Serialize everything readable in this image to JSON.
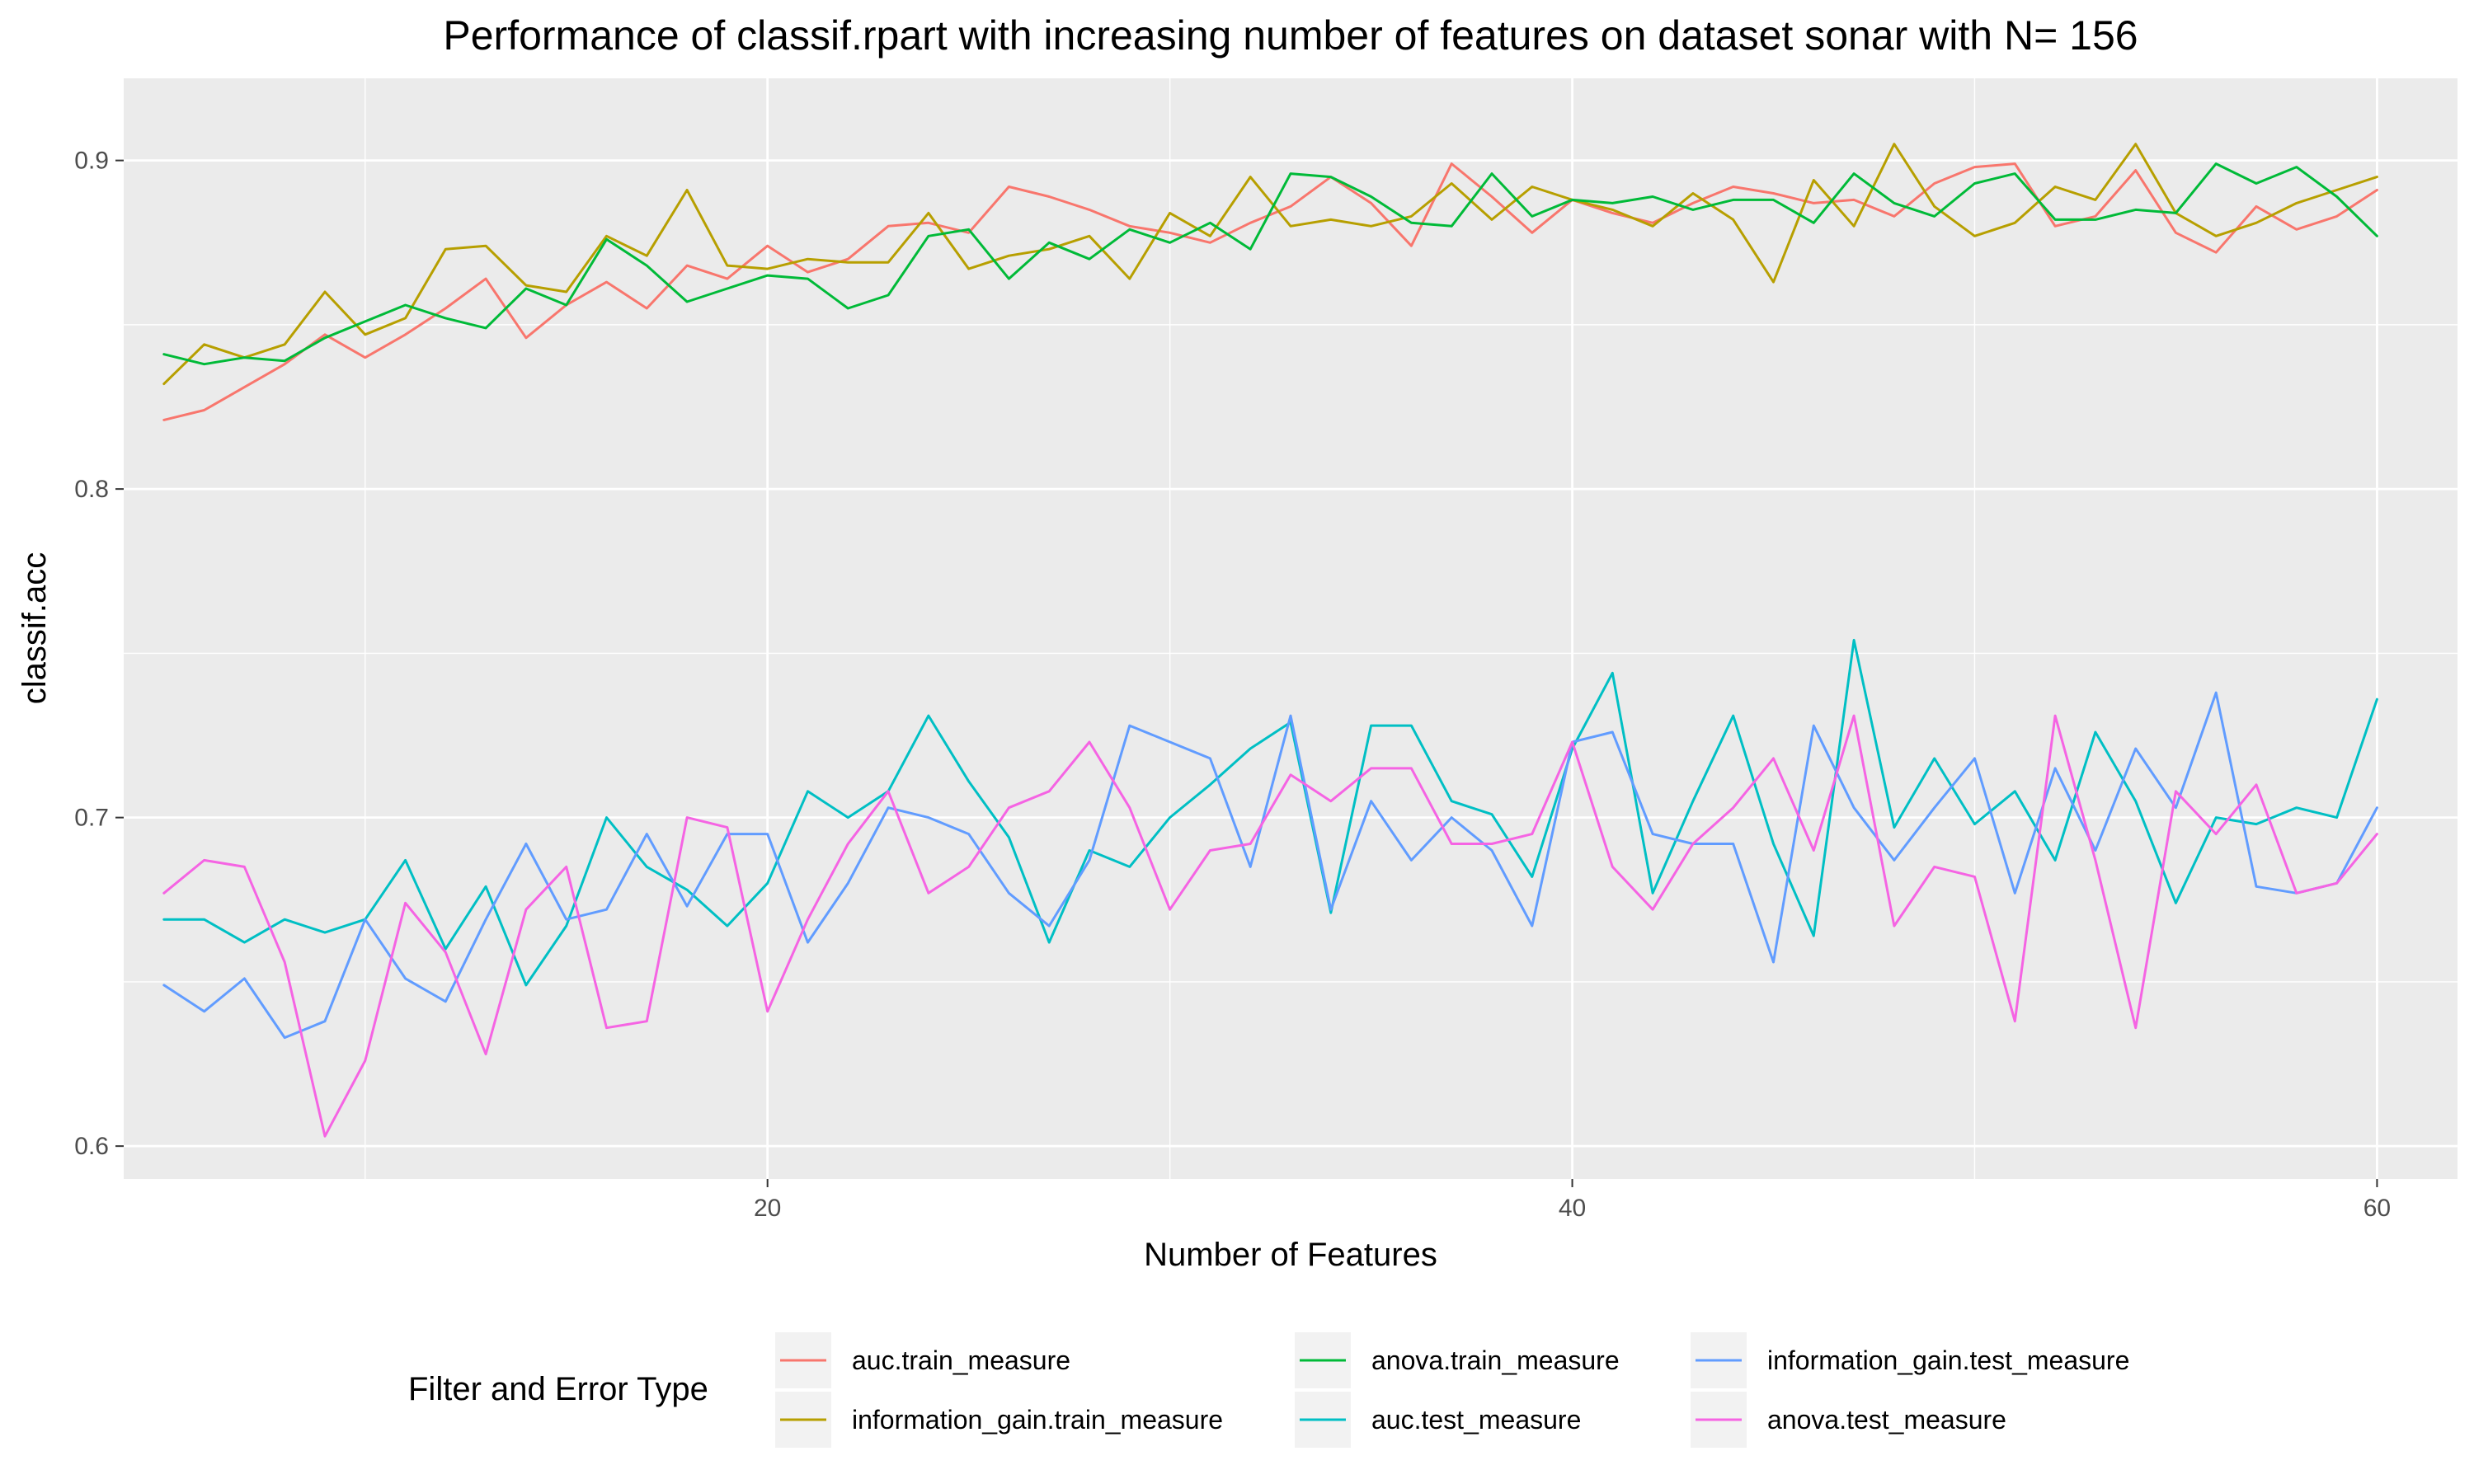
{
  "chart_data": {
    "type": "line",
    "title": "Performance of classif.rpart with increasing number of features on dataset sonar with N= 156",
    "xlabel": "Number of Features",
    "ylabel": "classif.acc",
    "xlim": [
      4,
      62
    ],
    "ylim": [
      0.59,
      0.925
    ],
    "x_ticks": [
      20,
      40,
      60
    ],
    "y_ticks": [
      0.6,
      0.7,
      0.8,
      0.9
    ],
    "x_tick_labels": [
      "20",
      "40",
      "60"
    ],
    "y_tick_labels": [
      "0.6",
      "0.7",
      "0.8",
      "0.9"
    ],
    "grid": true,
    "legend_title": "Filter and Error Type",
    "legend_position": "bottom",
    "x": [
      5,
      6,
      7,
      8,
      9,
      10,
      11,
      12,
      13,
      14,
      15,
      16,
      17,
      18,
      19,
      20,
      21,
      22,
      23,
      24,
      25,
      26,
      27,
      28,
      29,
      30,
      31,
      32,
      33,
      34,
      35,
      36,
      37,
      38,
      39,
      40,
      41,
      42,
      43,
      44,
      45,
      46,
      47,
      48,
      49,
      50,
      51,
      52,
      53,
      54,
      55,
      56,
      57,
      58,
      59,
      60
    ],
    "series": [
      {
        "name": "auc.train_measure",
        "color": "#F8766D",
        "values": [
          0.821,
          0.824,
          0.831,
          0.838,
          0.847,
          0.84,
          0.847,
          0.855,
          0.864,
          0.846,
          0.856,
          0.863,
          0.855,
          0.868,
          0.864,
          0.874,
          0.866,
          0.87,
          0.88,
          0.881,
          0.878,
          0.892,
          0.889,
          0.885,
          0.88,
          0.878,
          0.875,
          0.881,
          0.886,
          0.895,
          0.887,
          0.874,
          0.899,
          0.889,
          0.878,
          0.888,
          0.884,
          0.881,
          0.887,
          0.892,
          0.89,
          0.887,
          0.888,
          0.883,
          0.893,
          0.898,
          0.899,
          0.88,
          0.883,
          0.897,
          0.878,
          0.872,
          0.886,
          0.879,
          0.883,
          0.891
        ]
      },
      {
        "name": "information_gain.train_measure",
        "color": "#B79F00",
        "values": [
          0.832,
          0.844,
          0.84,
          0.844,
          0.86,
          0.847,
          0.852,
          0.873,
          0.874,
          0.862,
          0.86,
          0.877,
          0.871,
          0.891,
          0.868,
          0.867,
          0.87,
          0.869,
          0.869,
          0.884,
          0.867,
          0.871,
          0.873,
          0.877,
          0.864,
          0.884,
          0.877,
          0.895,
          0.88,
          0.882,
          0.88,
          0.883,
          0.893,
          0.882,
          0.892,
          0.888,
          0.885,
          0.88,
          0.89,
          0.882,
          0.863,
          0.894,
          0.88,
          0.905,
          0.886,
          0.877,
          0.881,
          0.892,
          0.888,
          0.905,
          0.884,
          0.877,
          0.881,
          0.887,
          0.891,
          0.895
        ]
      },
      {
        "name": "anova.train_measure",
        "color": "#00BA38",
        "values": [
          0.841,
          0.838,
          0.84,
          0.839,
          0.846,
          0.851,
          0.856,
          0.852,
          0.849,
          0.861,
          0.856,
          0.876,
          0.868,
          0.857,
          0.861,
          0.865,
          0.864,
          0.855,
          0.859,
          0.877,
          0.879,
          0.864,
          0.875,
          0.87,
          0.879,
          0.875,
          0.881,
          0.873,
          0.896,
          0.895,
          0.889,
          0.881,
          0.88,
          0.896,
          0.883,
          0.888,
          0.887,
          0.889,
          0.885,
          0.888,
          0.888,
          0.881,
          0.896,
          0.887,
          0.883,
          0.893,
          0.896,
          0.882,
          0.882,
          0.885,
          0.884,
          0.899,
          0.893,
          0.898,
          0.889,
          0.877
        ]
      },
      {
        "name": "auc.test_measure",
        "color": "#00BFC4",
        "values": [
          0.669,
          0.669,
          0.662,
          0.669,
          0.665,
          0.669,
          0.687,
          0.66,
          0.679,
          0.649,
          0.667,
          0.7,
          0.685,
          0.678,
          0.667,
          0.68,
          0.708,
          0.7,
          0.708,
          0.731,
          0.711,
          0.694,
          0.662,
          0.69,
          0.685,
          0.7,
          0.71,
          0.721,
          0.729,
          0.671,
          0.728,
          0.728,
          0.705,
          0.701,
          0.682,
          0.721,
          0.744,
          0.677,
          0.705,
          0.731,
          0.692,
          0.664,
          0.754,
          0.697,
          0.718,
          0.698,
          0.708,
          0.687,
          0.726,
          0.705,
          0.674,
          0.7,
          0.698,
          0.703,
          0.7,
          0.736
        ]
      },
      {
        "name": "information_gain.test_measure",
        "color": "#619CFF",
        "values": [
          0.649,
          0.641,
          0.651,
          0.633,
          0.638,
          0.669,
          0.651,
          0.644,
          0.669,
          0.692,
          0.669,
          0.672,
          0.695,
          0.673,
          0.695,
          0.695,
          0.662,
          0.68,
          0.703,
          0.7,
          0.695,
          0.677,
          0.667,
          0.687,
          0.728,
          0.723,
          0.718,
          0.685,
          0.731,
          0.672,
          0.705,
          0.687,
          0.7,
          0.69,
          0.667,
          0.723,
          0.726,
          0.695,
          0.692,
          0.692,
          0.656,
          0.728,
          0.703,
          0.687,
          0.703,
          0.718,
          0.677,
          0.715,
          0.69,
          0.721,
          0.703,
          0.738,
          0.679,
          0.677,
          0.68,
          0.703
        ]
      },
      {
        "name": "anova.test_measure",
        "color": "#F564E3",
        "values": [
          0.677,
          0.687,
          0.685,
          0.656,
          0.603,
          0.626,
          0.674,
          0.659,
          0.628,
          0.672,
          0.685,
          0.636,
          0.638,
          0.7,
          0.697,
          0.641,
          0.669,
          0.692,
          0.708,
          0.677,
          0.685,
          0.703,
          0.708,
          0.723,
          0.703,
          0.672,
          0.69,
          0.692,
          0.713,
          0.705,
          0.715,
          0.715,
          0.692,
          0.692,
          0.695,
          0.723,
          0.685,
          0.672,
          0.692,
          0.703,
          0.718,
          0.69,
          0.731,
          0.667,
          0.685,
          0.682,
          0.638,
          0.731,
          0.687,
          0.636,
          0.708,
          0.695,
          0.71,
          0.677,
          0.68,
          0.695
        ]
      }
    ]
  }
}
